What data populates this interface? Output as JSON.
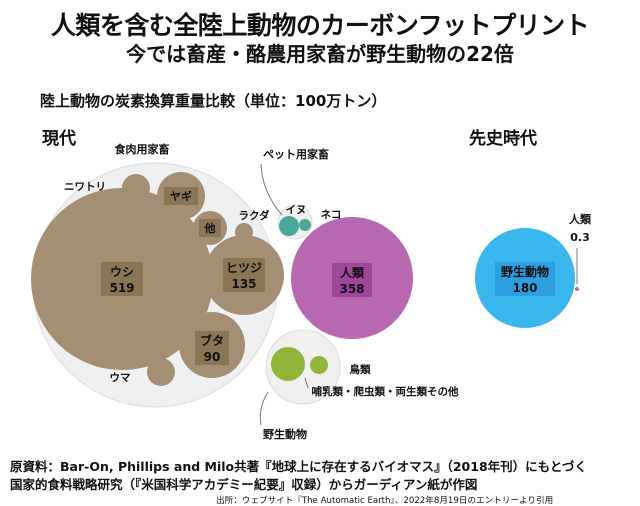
{
  "title": "人類を含む全陸上動物のカーボンフットプリント",
  "subtitle_line": "今では畜産・酪農用家畜が野生動物の22倍",
  "chart_data": {
    "type": "bubble",
    "title": "陸上動物の炭素換算重量比較（単位：100万トン）",
    "unit": "100万トン",
    "groups": [
      {
        "era": "現代",
        "items": [
          {
            "name": "ウシ",
            "value": 519,
            "category": "食肉用家畜",
            "label_inside": true,
            "show_value": true
          },
          {
            "name": "ヒツジ",
            "value": 135,
            "category": "食肉用家畜",
            "label_inside": true,
            "show_value": true
          },
          {
            "name": "ブタ",
            "value": 90,
            "category": "食肉用家畜",
            "label_inside": true,
            "show_value": true
          },
          {
            "name": "ヤギ",
            "category": "食肉用家畜",
            "label_inside": true,
            "show_value": false
          },
          {
            "name": "他",
            "category": "食肉用家畜",
            "label_inside": true,
            "show_value": false
          },
          {
            "name": "ニワトリ",
            "category": "食肉用家畜",
            "label_inside": false,
            "show_value": false
          },
          {
            "name": "ウマ",
            "category": "食肉用家畜",
            "label_inside": false,
            "show_value": false
          },
          {
            "name": "ラクダ",
            "category": "食肉用家畜",
            "label_inside": false,
            "show_value": false
          },
          {
            "name": "人類",
            "value": 358,
            "category": "人類",
            "label_inside": true,
            "show_value": true
          },
          {
            "name": "イヌ",
            "category": "ペット用家畜",
            "label_inside": false,
            "show_value": false
          },
          {
            "name": "ネコ",
            "category": "ペット用家畜",
            "label_inside": false,
            "show_value": false
          },
          {
            "name": "鳥類",
            "category": "野生動物",
            "label_inside": false,
            "show_value": false
          },
          {
            "name": "哺乳類・爬虫類・両生類その他",
            "category": "野生動物",
            "label_inside": false,
            "show_value": false
          }
        ],
        "group_labels": [
          "食肉用家畜",
          "ペット用家畜",
          "野生動物"
        ]
      },
      {
        "era": "先史時代",
        "items": [
          {
            "name": "野生動物",
            "value": 180,
            "label_inside": true,
            "show_value": true
          },
          {
            "name": "人類",
            "value": 0.3,
            "label_inside": false,
            "show_value": true
          }
        ]
      }
    ],
    "colors": {
      "livestock": "#a48e74",
      "livestock_label_bg": "#8a7555",
      "human": "#b868b0",
      "human_label_bg": "#a0469a",
      "pet": "#4aa89a",
      "wild_modern": "#92b53a",
      "wild_prehistoric": "#3ab8ee",
      "wild_prehistoric_label_bg": "#2f9ee0",
      "grouping": "#f0f0f0"
    }
  },
  "sources": {
    "line1": "原資料：Bar-On, Phillips and Milo共著『地球上に存在するバイオマス』（2018年刊）にもとづく",
    "line2": "国家的食料戦略研究（『米国科学アカデミー紀要』収録）からガーディアン紙が作図",
    "line3": "出所：ウェブサイト『The Automatic Earth』、2022年8月19日のエントリーより引用"
  }
}
